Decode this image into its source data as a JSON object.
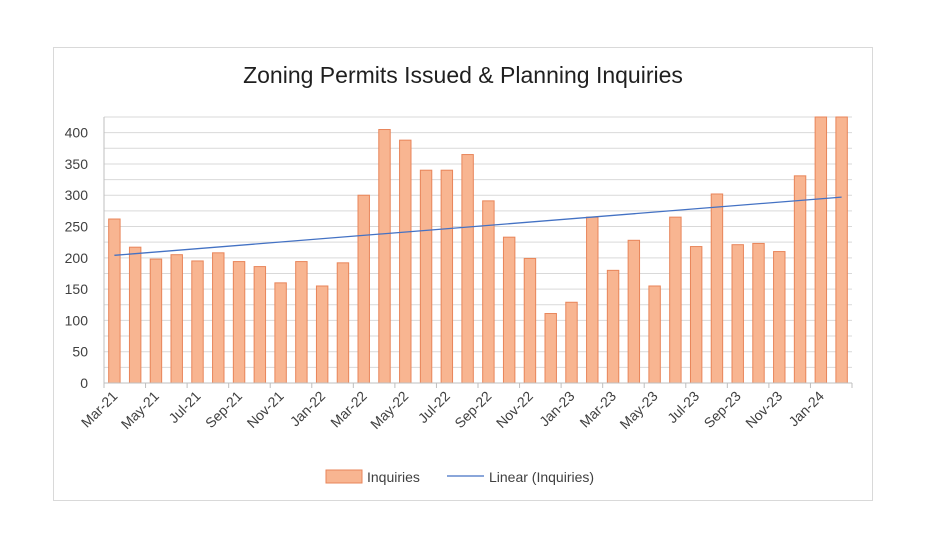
{
  "chart_data": {
    "type": "bar",
    "title": "Zoning Permits Issued & Planning Inquiries",
    "xlabel": "",
    "ylabel": "",
    "ylim": [
      0,
      425
    ],
    "yticks": [
      0,
      50,
      100,
      150,
      200,
      250,
      300,
      350,
      400
    ],
    "grid": true,
    "legend_position": "bottom",
    "categories": [
      "Mar-21",
      "Apr-21",
      "May-21",
      "Jun-21",
      "Jul-21",
      "Aug-21",
      "Sep-21",
      "Oct-21",
      "Nov-21",
      "Dec-21",
      "Jan-22",
      "Feb-22",
      "Mar-22",
      "Apr-22",
      "May-22",
      "Jun-22",
      "Jul-22",
      "Aug-22",
      "Sep-22",
      "Oct-22",
      "Nov-22",
      "Dec-22",
      "Jan-23",
      "Feb-23",
      "Mar-23",
      "Apr-23",
      "May-23",
      "Jun-23",
      "Jul-23",
      "Aug-23",
      "Sep-23",
      "Oct-23",
      "Nov-23",
      "Dec-23",
      "Jan-24",
      "Feb-24"
    ],
    "tick_labels": [
      "Mar-21",
      "May-21",
      "Jul-21",
      "Sep-21",
      "Nov-21",
      "Jan-22",
      "Mar-22",
      "May-22",
      "Jul-22",
      "Sep-22",
      "Nov-22",
      "Jan-23",
      "Mar-23",
      "May-23",
      "Jul-23",
      "Sep-23",
      "Nov-23",
      "Jan-24"
    ],
    "series": [
      {
        "name": "Inquiries",
        "kind": "bar",
        "color": "#f8b591",
        "edge_color": "#e8855a",
        "values": [
          262,
          217,
          198,
          205,
          195,
          208,
          194,
          186,
          160,
          194,
          155,
          192,
          300,
          405,
          388,
          340,
          340,
          365,
          291,
          233,
          199,
          111,
          129,
          265,
          180,
          228,
          155,
          265,
          218,
          302,
          221,
          223,
          210,
          331,
          425,
          425
        ]
      },
      {
        "name": "Linear (Inquiries)",
        "kind": "trendline",
        "color": "#4472c4",
        "start": 204,
        "end": 297
      }
    ]
  }
}
